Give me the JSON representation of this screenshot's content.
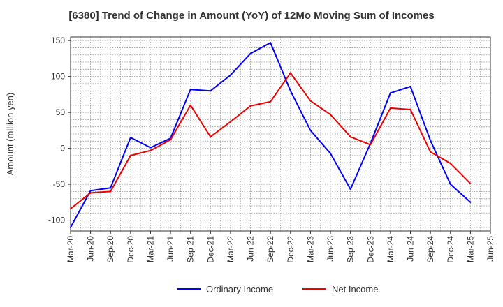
{
  "chart_data": {
    "type": "line",
    "title": "[6380]  Trend of Change in Amount (YoY) of 12Mo Moving Sum of Incomes",
    "ylabel": "Amount (million yen)",
    "xlabel": "",
    "ylim": [
      -115,
      155
    ],
    "yticks": [
      -100,
      -50,
      0,
      50,
      100,
      150
    ],
    "grid": true,
    "legend_position": "bottom-center",
    "categories": [
      "Mar-20",
      "Jun-20",
      "Sep-20",
      "Dec-20",
      "Mar-21",
      "Jun-21",
      "Sep-21",
      "Dec-21",
      "Mar-22",
      "Jun-22",
      "Sep-22",
      "Dec-22",
      "Mar-23",
      "Jun-23",
      "Sep-23",
      "Dec-23",
      "Mar-24",
      "Jun-24",
      "Sep-24",
      "Dec-24",
      "Mar-25",
      "Jun-25"
    ],
    "series": [
      {
        "name": "Ordinary Income",
        "color": "#0000ff",
        "values": [
          -110,
          -59,
          -55,
          15,
          1,
          14,
          82,
          80,
          102,
          132,
          147,
          80,
          25,
          -7,
          -57,
          7,
          77,
          86,
          11,
          -50,
          -75,
          null
        ]
      },
      {
        "name": "Net Income",
        "color": "#ee0000",
        "values": [
          -84,
          -62,
          -60,
          -10,
          -3,
          12,
          60,
          16,
          37,
          59,
          65,
          105,
          66,
          47,
          16,
          5,
          56,
          54,
          -5,
          -21,
          -49,
          null
        ]
      }
    ]
  }
}
